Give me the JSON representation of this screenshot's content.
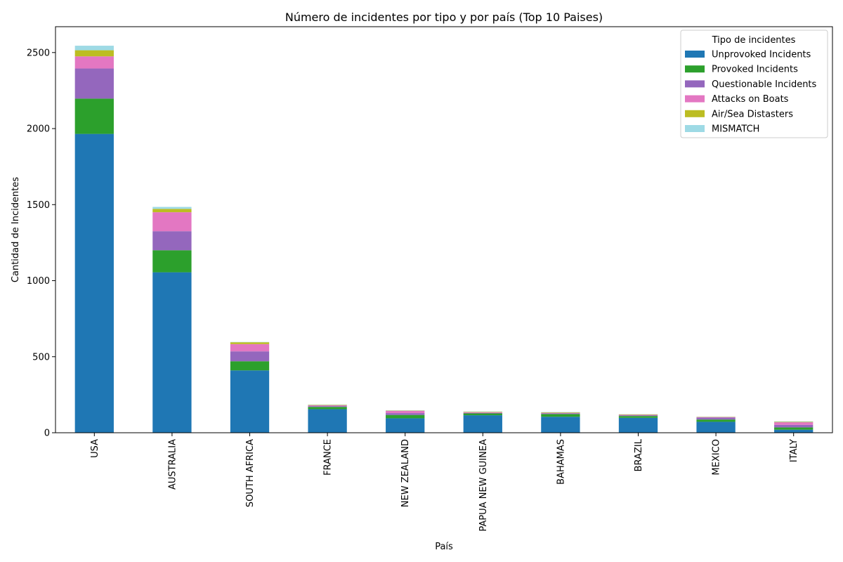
{
  "chart_data": {
    "type": "bar",
    "stacked": true,
    "title": "Número de incidentes por tipo y por país (Top 10 Paises)",
    "xlabel": "País",
    "ylabel": "Cantidad de Incidentes",
    "ylim": [
      0,
      2670
    ],
    "yticks": [
      0,
      500,
      1000,
      1500,
      2000,
      2500
    ],
    "grid": false,
    "legend": {
      "title": "Tipo de incidentes",
      "placement": "top-right"
    },
    "categories": [
      "USA",
      "AUSTRALIA",
      "SOUTH AFRICA",
      "FRANCE",
      "NEW ZEALAND",
      "PAPUA NEW GUINEA",
      "BAHAMAS",
      "BRAZIL",
      "MEXICO",
      "ITALY"
    ],
    "series": [
      {
        "name": "Unprovoked Incidents",
        "color": "#1f77b4",
        "values": [
          1965,
          1055,
          410,
          155,
          95,
          115,
          105,
          98,
          72,
          20
        ]
      },
      {
        "name": "Provoked Incidents",
        "color": "#2ca02c",
        "values": [
          232,
          145,
          60,
          15,
          22,
          12,
          18,
          12,
          15,
          15
        ]
      },
      {
        "name": "Questionable Incidents",
        "color": "#9467bd",
        "values": [
          198,
          125,
          65,
          5,
          12,
          3,
          5,
          5,
          13,
          17
        ]
      },
      {
        "name": "Attacks on Boats",
        "color": "#e377c2",
        "values": [
          80,
          125,
          48,
          5,
          15,
          5,
          3,
          3,
          3,
          17
        ]
      },
      {
        "name": "Air/Sea Distasters",
        "color": "#bcbd22",
        "values": [
          40,
          22,
          12,
          3,
          2,
          3,
          3,
          3,
          2,
          3
        ]
      },
      {
        "name": "MISMATCH",
        "color": "#9edae5",
        "values": [
          30,
          13,
          2,
          2,
          2,
          2,
          2,
          1,
          1,
          3
        ]
      }
    ]
  }
}
